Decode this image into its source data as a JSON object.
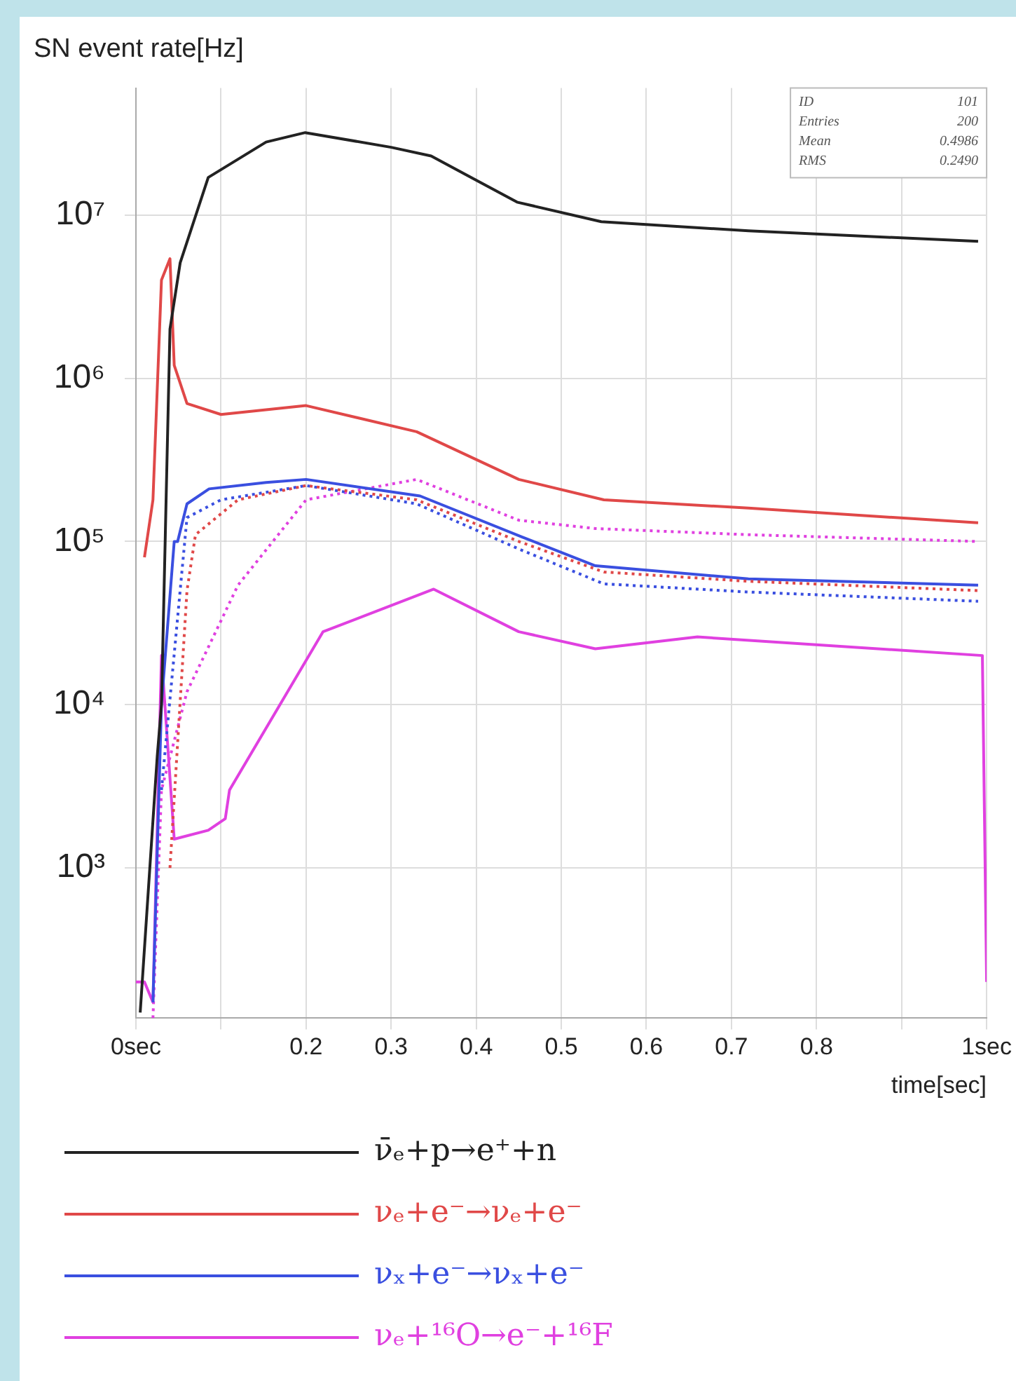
{
  "chart_data": {
    "type": "line",
    "ylabel": "SN event rate[Hz]",
    "xlabel": "time[sec]",
    "log": "y",
    "grid": true,
    "legend": "bottom",
    "marker": "none",
    "xlim": [
      0,
      1
    ],
    "xticks": [
      {
        "value": 0,
        "label": "0sec"
      },
      {
        "value": 0.1,
        "label": null
      },
      {
        "value": 0.2,
        "label": "0.2"
      },
      0.3,
      0.4,
      0.5,
      0.6,
      0.7,
      0.8,
      {
        "value": 0.9,
        "label": null
      },
      {
        "value": 1,
        "label": "1sec"
      }
    ],
    "ylim": [
      120,
      60000000
    ],
    "yticks": [
      {
        "value": 1000,
        "label": "10³"
      },
      {
        "value": 10000,
        "label": "10⁴"
      },
      {
        "value": 100000,
        "label": "10⁵"
      },
      {
        "value": 1000000,
        "label": "10⁶"
      },
      {
        "value": 10000000,
        "label": "10⁷"
      }
    ],
    "annotations": [
      "ID 101",
      "Entries 200",
      "Mean 0.4986",
      "RMS 0.2490"
    ],
    "series": [
      {
        "name": "ν̄ₑ+p→e⁺+n",
        "color": "#222222",
        "line_style": "solid",
        "x": [
          0.005,
          0.025,
          0.03,
          0.04,
          0.052,
          0.085,
          0.153,
          0.199,
          0.3,
          0.347,
          0.448,
          0.547,
          0.72,
          0.99
        ],
        "values": [
          130,
          4800,
          10000,
          2000000,
          5100000,
          17000000,
          28000000,
          32000000,
          26000000,
          23000000,
          12000000,
          9100000,
          8000000,
          6900000
        ]
      },
      {
        "name": "νₑ+e⁻→νₑ+e⁻",
        "color": "#e04848",
        "line_style": "solid",
        "x": [
          0.01,
          0.02,
          0.03,
          0.04,
          0.045,
          0.06,
          0.1,
          0.2,
          0.33,
          0.45,
          0.55,
          0.72,
          0.99
        ],
        "values": [
          80000,
          180000,
          4000000,
          5400000,
          1200000,
          700000,
          600000,
          680000,
          470000,
          240000,
          180000,
          160000,
          130000
        ]
      },
      {
        "color": "#e04848",
        "line_style": "dotted",
        "x": [
          0.04,
          0.06,
          0.07,
          0.12,
          0.2,
          0.33,
          0.45,
          0.55,
          0.72,
          0.99
        ],
        "values": [
          1000,
          50000,
          110000,
          180000,
          220000,
          180000,
          100000,
          65000,
          57000,
          50000
        ]
      },
      {
        "name": "νₓ+e⁻→νₓ+e⁻",
        "color": "#3a4fe0",
        "line_style": "solid",
        "x": [
          0.02,
          0.03,
          0.045,
          0.049,
          0.06,
          0.086,
          0.153,
          0.2,
          0.334,
          0.453,
          0.54,
          0.72,
          0.99
        ],
        "values": [
          150,
          10000,
          100000,
          100000,
          170000,
          210000,
          230000,
          240000,
          190000,
          107000,
          71000,
          59000,
          54000
        ]
      },
      {
        "color": "#3a4fe0",
        "line_style": "dotted",
        "x": [
          0.03,
          0.06,
          0.1,
          0.2,
          0.33,
          0.45,
          0.55,
          0.72,
          0.99
        ],
        "values": [
          3000,
          140000,
          180000,
          220000,
          170000,
          90000,
          55000,
          49000,
          43000
        ]
      },
      {
        "name": "νₑ+¹⁶O→e⁻+¹⁶F",
        "color": "#e040e0",
        "line_style": "solid",
        "x": [
          0,
          0.01,
          0.02,
          0.03,
          0.045,
          0.085,
          0.105,
          0.11,
          0.22,
          0.35,
          0.45,
          0.54,
          0.66,
          0.995,
          1
        ],
        "values": [
          200,
          200,
          150,
          20000,
          1500,
          1700,
          2000,
          3000,
          28000,
          51000,
          28000,
          22000,
          26000,
          20000,
          200
        ]
      },
      {
        "color": "#e040e0",
        "line_style": "dotted",
        "x": [
          0.02,
          0.03,
          0.06,
          0.12,
          0.2,
          0.33,
          0.45,
          0.54,
          0.72,
          0.99
        ],
        "values": [
          120,
          3000,
          12000,
          54000,
          180000,
          240000,
          135000,
          120000,
          110000,
          100000
        ]
      }
    ]
  }
}
